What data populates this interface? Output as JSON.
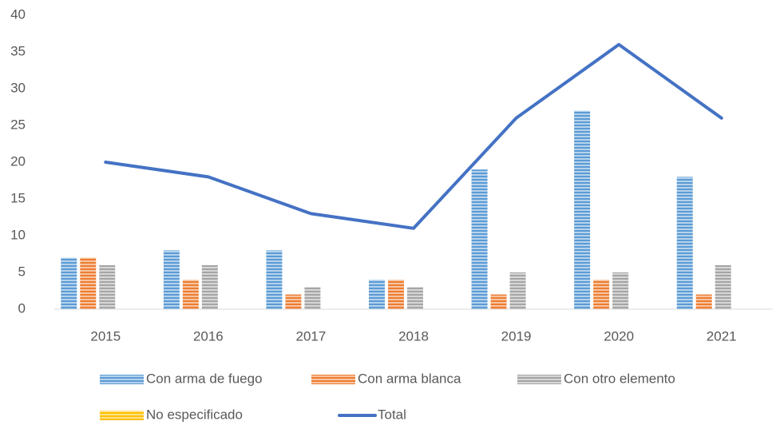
{
  "chart_data": {
    "type": "bar-line",
    "categories": [
      "2015",
      "2016",
      "2017",
      "2018",
      "2019",
      "2020",
      "2021"
    ],
    "series": [
      {
        "name": "Con arma de fuego",
        "color": "#5b9bd5",
        "type": "bar",
        "values": [
          7,
          8,
          8,
          4,
          19,
          27,
          18
        ]
      },
      {
        "name": "Con arma blanca",
        "color": "#ed7d31",
        "type": "bar",
        "values": [
          7,
          4,
          2,
          4,
          2,
          4,
          2
        ]
      },
      {
        "name": "Con otro elemento",
        "color": "#a5a5a5",
        "type": "bar",
        "values": [
          6,
          6,
          3,
          3,
          5,
          5,
          6
        ]
      },
      {
        "name": "No especificado",
        "color": "#ffc000",
        "type": "bar",
        "values": [
          0,
          0,
          0,
          0,
          0,
          0,
          0
        ]
      },
      {
        "name": "Total",
        "color": "#4472c4",
        "type": "line",
        "values": [
          20,
          18,
          13,
          11,
          26,
          36,
          26
        ]
      }
    ],
    "ylim": [
      0,
      40
    ],
    "yticks": [
      0,
      5,
      10,
      15,
      20,
      25,
      30,
      35,
      40
    ],
    "grid": false,
    "legend": "bottom"
  }
}
